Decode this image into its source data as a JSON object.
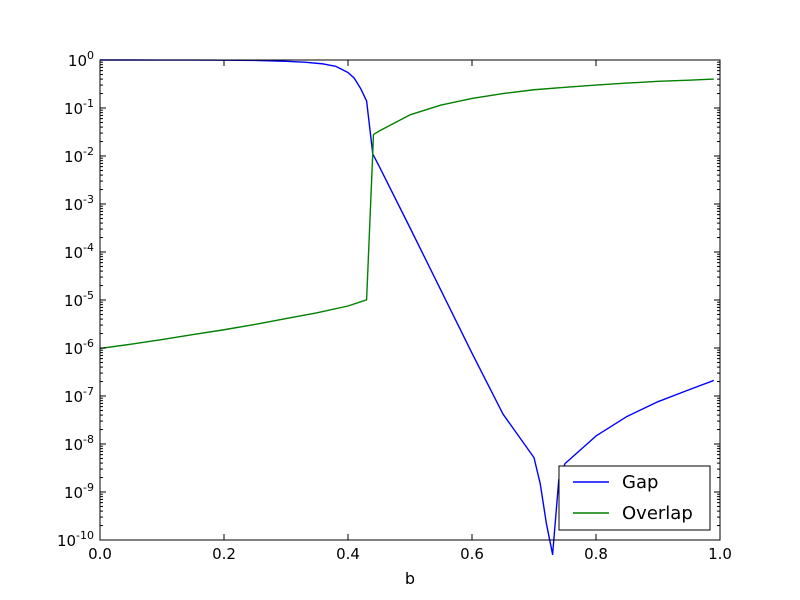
{
  "chart_data": {
    "type": "line",
    "title": "",
    "xlabel": "b",
    "ylabel": "",
    "xlim": [
      0.0,
      1.0
    ],
    "ylim": [
      1e-10,
      1
    ],
    "yscale": "log",
    "grid": false,
    "legend": {
      "placement": "lower-right",
      "entries": [
        "Gap",
        "Overlap"
      ]
    },
    "x_ticks": [
      {
        "value": 0.0,
        "label": "0.0"
      },
      {
        "value": 0.2,
        "label": "0.2"
      },
      {
        "value": 0.4,
        "label": "0.4"
      },
      {
        "value": 0.6,
        "label": "0.6"
      },
      {
        "value": 0.8,
        "label": "0.8"
      },
      {
        "value": 1.0,
        "label": "1.0"
      }
    ],
    "y_ticks": [
      {
        "value": 1,
        "base": "10",
        "exp": "0"
      },
      {
        "value": 0.1,
        "base": "10",
        "exp": "-1"
      },
      {
        "value": 0.01,
        "base": "10",
        "exp": "-2"
      },
      {
        "value": 0.001,
        "base": "10",
        "exp": "-3"
      },
      {
        "value": 0.0001,
        "base": "10",
        "exp": "-4"
      },
      {
        "value": 1e-05,
        "base": "10",
        "exp": "-5"
      },
      {
        "value": 1e-06,
        "base": "10",
        "exp": "-6"
      },
      {
        "value": 1e-07,
        "base": "10",
        "exp": "-7"
      },
      {
        "value": 1e-08,
        "base": "10",
        "exp": "-8"
      },
      {
        "value": 1e-09,
        "base": "10",
        "exp": "-9"
      },
      {
        "value": 1e-10,
        "base": "10",
        "exp": "-10"
      }
    ],
    "series": [
      {
        "name": "Gap",
        "color": "#0000ff",
        "x": [
          0.0,
          0.05,
          0.1,
          0.15,
          0.2,
          0.25,
          0.3,
          0.33,
          0.36,
          0.38,
          0.4,
          0.41,
          0.42,
          0.43,
          0.44,
          0.45,
          0.5,
          0.55,
          0.6,
          0.65,
          0.7,
          0.71,
          0.72,
          0.73,
          0.74,
          0.75,
          0.8,
          0.85,
          0.9,
          0.95,
          0.99
        ],
        "y": [
          1.0,
          1.0,
          0.999,
          0.997,
          0.99,
          0.978,
          0.94,
          0.9,
          0.83,
          0.74,
          0.55,
          0.42,
          0.26,
          0.14,
          0.011,
          0.0062,
          0.00032,
          1.58e-05,
          7.8e-07,
          4.2e-08,
          5.2e-09,
          1.5e-09,
          2.2e-10,
          5e-11,
          1.8e-09,
          3.9e-09,
          1.47e-08,
          3.75e-08,
          7.62e-08,
          1.35e-07,
          2.11e-07
        ]
      },
      {
        "name": "Overlap",
        "color": "#008000",
        "x": [
          0.0,
          0.05,
          0.1,
          0.15,
          0.2,
          0.25,
          0.3,
          0.35,
          0.4,
          0.43,
          0.44,
          0.441,
          0.45,
          0.5,
          0.55,
          0.6,
          0.65,
          0.7,
          0.75,
          0.8,
          0.85,
          0.9,
          0.95,
          0.99
        ],
        "y": [
          9.8e-07,
          1.2e-06,
          1.5e-06,
          1.9e-06,
          2.4e-06,
          3.1e-06,
          4.1e-06,
          5.4e-06,
          7.5e-06,
          1.01e-05,
          0.012,
          0.028,
          0.033,
          0.072,
          0.115,
          0.158,
          0.2,
          0.24,
          0.27,
          0.3,
          0.33,
          0.36,
          0.38,
          0.4
        ]
      }
    ]
  }
}
